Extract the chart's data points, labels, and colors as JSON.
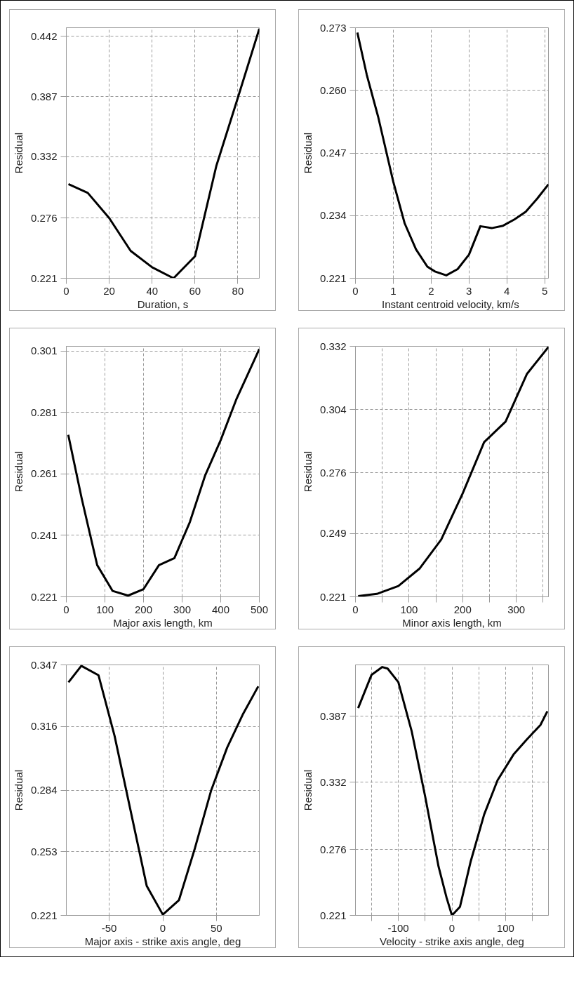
{
  "chart_data": [
    {
      "type": "line",
      "xlabel": "Duration, s",
      "ylabel": "Residual",
      "color": "#000000",
      "grid": true,
      "marker": "none",
      "line_style": "solid",
      "x": [
        1,
        10,
        20,
        30,
        40,
        50,
        60,
        70,
        80,
        90
      ],
      "values": [
        0.307,
        0.299,
        0.276,
        0.246,
        0.231,
        0.221,
        0.241,
        0.324,
        0.386,
        0.449
      ],
      "xlim": [
        0,
        90
      ],
      "ylim": [
        0.221,
        0.45
      ],
      "xticks": [
        0,
        20,
        40,
        60,
        80
      ],
      "yticks": [
        0.221,
        0.276,
        0.332,
        0.387,
        0.442
      ]
    },
    {
      "type": "line",
      "xlabel": "Instant centroid velocity,  km/s",
      "ylabel": "Residual",
      "color": "#000000",
      "grid": true,
      "marker": "none",
      "line_style": "solid",
      "x": [
        0.05,
        0.3,
        0.6,
        1.0,
        1.3,
        1.6,
        1.9,
        2.1,
        2.4,
        2.7,
        3.0,
        3.3,
        3.6,
        3.9,
        4.2,
        4.5,
        4.8,
        5.1
      ],
      "values": [
        0.272,
        0.2632,
        0.2545,
        0.241,
        0.2324,
        0.227,
        0.2234,
        0.2224,
        0.2216,
        0.2229,
        0.2259,
        0.2318,
        0.2314,
        0.2319,
        0.2332,
        0.2348,
        0.2375,
        0.2405
      ],
      "xlim": [
        0,
        5.1
      ],
      "ylim": [
        0.221,
        0.273
      ],
      "xticks": [
        0,
        1,
        2,
        3,
        4,
        5
      ],
      "yticks": [
        0.221,
        0.234,
        0.247,
        {
          "value": 0.26,
          "label": "0.260"
        },
        0.273
      ]
    },
    {
      "type": "line",
      "xlabel": "Major axis length, km",
      "ylabel": "Residual",
      "color": "#000000",
      "grid": true,
      "marker": "none",
      "line_style": "solid",
      "x": [
        5,
        40,
        80,
        120,
        160,
        200,
        240,
        280,
        320,
        360,
        400,
        440,
        500
      ],
      "values": [
        0.2737,
        0.2529,
        0.2313,
        0.2229,
        0.2214,
        0.2235,
        0.2313,
        0.2336,
        0.2453,
        0.2606,
        0.272,
        0.2851,
        0.3016
      ],
      "xlim": [
        0,
        500
      ],
      "ylim": [
        0.221,
        0.3025
      ],
      "xticks": [
        0,
        100,
        200,
        300,
        400,
        500
      ],
      "yticks": [
        0.221,
        0.241,
        0.261,
        0.281,
        0.301
      ]
    },
    {
      "type": "line",
      "xlabel": "Minor axis length, km",
      "ylabel": "Residual",
      "color": "#000000",
      "grid": true,
      "marker": "none",
      "line_style": "solid",
      "x": [
        5,
        40,
        80,
        120,
        160,
        200,
        240,
        280,
        320,
        360
      ],
      "values": [
        0.2213,
        0.2223,
        0.2258,
        0.2336,
        0.2464,
        0.2668,
        0.2895,
        0.2986,
        0.3198,
        0.3317
      ],
      "xlim": [
        0,
        360
      ],
      "ylim": [
        0.221,
        0.332
      ],
      "xticks": [
        0,
        {
          "value": 50,
          "label": null
        },
        100,
        {
          "value": 150,
          "label": null
        },
        200,
        {
          "value": 250,
          "label": null
        },
        300,
        {
          "value": 350,
          "label": null
        }
      ],
      "yticks": [
        0.221,
        0.249,
        0.276,
        0.304,
        0.332
      ]
    },
    {
      "type": "line",
      "xlabel": "Major axis - strike axis angle, deg",
      "ylabel": "Residual",
      "color": "#000000",
      "grid": true,
      "marker": "none",
      "line_style": "solid",
      "x": [
        -88,
        -76,
        -60,
        -45,
        -15,
        0,
        15,
        30,
        45,
        60,
        75,
        89
      ],
      "values": [
        0.3382,
        0.3465,
        0.3418,
        0.3113,
        0.2358,
        0.2214,
        0.2286,
        0.2549,
        0.2837,
        0.3054,
        0.3225,
        0.3362
      ],
      "xlim": [
        -90,
        90
      ],
      "ylim": [
        0.221,
        0.347
      ],
      "xticks": [
        -50,
        0,
        50
      ],
      "yticks": [
        0.221,
        0.253,
        0.284,
        0.316,
        0.347
      ]
    },
    {
      "type": "line",
      "xlabel": "Velocity - strike axis angle, deg",
      "ylabel": "Residual",
      "color": "#000000",
      "grid": true,
      "marker": "none",
      "line_style": "solid",
      "x": [
        -175,
        -150,
        -130,
        -120,
        -100,
        -75,
        -50,
        -25,
        -10,
        0,
        15,
        35,
        60,
        85,
        115,
        140,
        165,
        178
      ],
      "values": [
        0.3939,
        0.4217,
        0.4282,
        0.4269,
        0.4156,
        0.3744,
        0.3202,
        0.2617,
        0.2357,
        0.221,
        0.2282,
        0.2661,
        0.3051,
        0.3337,
        0.3553,
        0.3679,
        0.3798,
        0.3913
      ],
      "xlim": [
        -180,
        180
      ],
      "ylim": [
        0.221,
        0.43
      ],
      "xticks": [
        {
          "value": -150,
          "label": null
        },
        -100,
        {
          "value": -50,
          "label": null
        },
        0,
        {
          "value": 50,
          "label": null
        },
        100,
        {
          "value": 150,
          "label": null
        }
      ],
      "yticks": [
        0.221,
        0.276,
        0.332,
        0.387
      ]
    }
  ]
}
